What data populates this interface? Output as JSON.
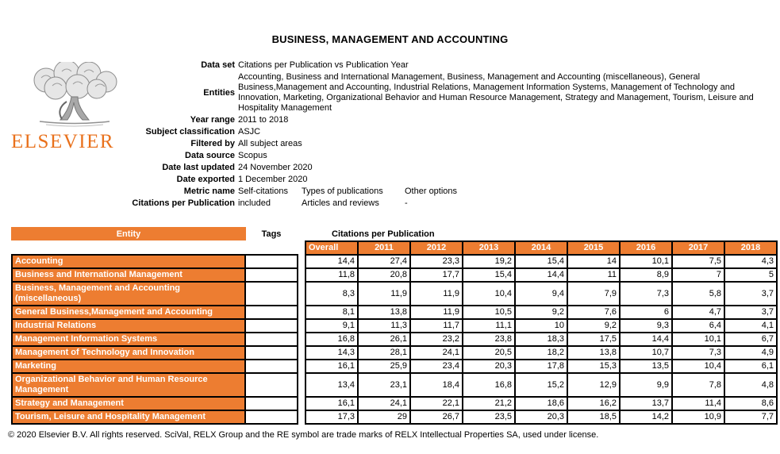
{
  "title": "BUSINESS, MANAGEMENT AND ACCOUNTING",
  "logo": {
    "text": "ELSEVIER"
  },
  "colors": {
    "accent_orange": "#ED7D31",
    "logo_orange": "#E9711C",
    "border": "#000000"
  },
  "metadata": [
    {
      "label": "Data set",
      "values": [
        "Citations per Publication vs Publication Year"
      ]
    },
    {
      "label": "Entities",
      "values": [
        "Accounting, Business and International Management, Business, Management and Accounting (miscellaneous), General Business,Management and Accounting, Industrial Relations, Management Information Systems, Management of Technology and Innovation, Marketing, Organizational Behavior and Human Resource Management, Strategy and Management, Tourism, Leisure and Hospitality Management"
      ]
    },
    {
      "label": "Year range",
      "values": [
        "2011 to 2018"
      ]
    },
    {
      "label": "Subject classification",
      "values": [
        "ASJC"
      ]
    },
    {
      "label": "Filtered by",
      "values": [
        "All subject areas"
      ]
    },
    {
      "label": "Data source",
      "values": [
        "Scopus"
      ]
    },
    {
      "label": "Date last updated",
      "values": [
        "24 November 2020"
      ]
    },
    {
      "label": "Date exported",
      "values": [
        "1 December 2020"
      ]
    },
    {
      "label": "Metric name",
      "values": [
        "Self-citations",
        "Types of publications",
        "Other options"
      ]
    },
    {
      "label": "Citations per Publication",
      "values": [
        "included",
        "Articles and reviews",
        "-"
      ]
    }
  ],
  "table": {
    "entity_header": "Entity",
    "tags_header": "Tags",
    "group_header": "Citations per Publication",
    "columns": [
      "Overall",
      "2011",
      "2012",
      "2013",
      "2014",
      "2015",
      "2016",
      "2017",
      "2018"
    ],
    "rows": [
      {
        "entity": "Accounting",
        "tags": "",
        "values": [
          "14,4",
          "27,4",
          "23,3",
          "19,2",
          "15,4",
          "14",
          "10,1",
          "7,5",
          "4,3"
        ]
      },
      {
        "entity": "Business and International Management",
        "tags": "",
        "values": [
          "11,8",
          "20,8",
          "17,7",
          "15,4",
          "14,4",
          "11",
          "8,9",
          "7",
          "5"
        ]
      },
      {
        "entity": "Business, Management and Accounting (miscellaneous)",
        "tags": "",
        "values": [
          "8,3",
          "11,9",
          "11,9",
          "10,4",
          "9,4",
          "7,9",
          "7,3",
          "5,8",
          "3,7"
        ]
      },
      {
        "entity": "General Business,Management and Accounting",
        "tags": "",
        "values": [
          "8,1",
          "13,8",
          "11,9",
          "10,5",
          "9,2",
          "7,6",
          "6",
          "4,7",
          "3,7"
        ]
      },
      {
        "entity": "Industrial Relations",
        "tags": "",
        "values": [
          "9,1",
          "11,3",
          "11,7",
          "11,1",
          "10",
          "9,2",
          "9,3",
          "6,4",
          "4,1"
        ]
      },
      {
        "entity": "Management Information Systems",
        "tags": "",
        "values": [
          "16,8",
          "26,1",
          "23,2",
          "23,8",
          "18,3",
          "17,5",
          "14,4",
          "10,1",
          "6,7"
        ]
      },
      {
        "entity": "Management of Technology and Innovation",
        "tags": "",
        "values": [
          "14,3",
          "28,1",
          "24,1",
          "20,5",
          "18,2",
          "13,8",
          "10,7",
          "7,3",
          "4,9"
        ]
      },
      {
        "entity": "Marketing",
        "tags": "",
        "values": [
          "16,1",
          "25,9",
          "23,4",
          "20,3",
          "17,8",
          "15,3",
          "13,5",
          "10,4",
          "6,1"
        ]
      },
      {
        "entity": "Organizational Behavior and Human Resource Management",
        "tags": "",
        "values": [
          "13,4",
          "23,1",
          "18,4",
          "16,8",
          "15,2",
          "12,9",
          "9,9",
          "7,8",
          "4,8"
        ]
      },
      {
        "entity": "Strategy and Management",
        "tags": "",
        "values": [
          "16,1",
          "24,1",
          "22,1",
          "21,2",
          "18,6",
          "16,2",
          "13,7",
          "11,4",
          "8,6"
        ]
      },
      {
        "entity": "Tourism, Leisure and Hospitality Management",
        "tags": "",
        "values": [
          "17,3",
          "29",
          "26,7",
          "23,5",
          "20,3",
          "18,5",
          "14,2",
          "10,9",
          "7,7"
        ]
      }
    ]
  },
  "footer": "© 2020 Elsevier B.V. All rights reserved. SciVal, RELX Group and the RE symbol are trade marks of RELX Intellectual Properties SA, used under license."
}
